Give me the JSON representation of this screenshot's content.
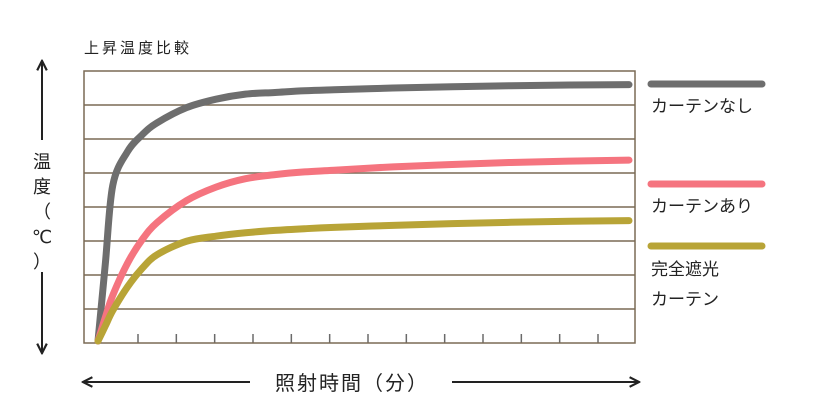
{
  "chart_data": {
    "type": "line",
    "title": "上昇温度比較",
    "ylabel": "温度（℃）",
    "ylabel_chars": [
      "温",
      "度",
      "（",
      "℃",
      "）"
    ],
    "xlabel": "照射時間（分）",
    "grid": true,
    "x": [
      0,
      0.25,
      0.5,
      1,
      1.5,
      2,
      3,
      4,
      5,
      6,
      7,
      8,
      10,
      12,
      14,
      16,
      18
    ],
    "ylim": [
      0,
      7.6
    ],
    "xlim": [
      0,
      18
    ],
    "x_tick_count": 13,
    "series": [
      {
        "name": "カーテンなし",
        "label_lines": [
          "カーテンなし"
        ],
        "color": "#6e6e6e",
        "values": [
          0,
          2.3,
          4.6,
          5.6,
          6.1,
          6.45,
          6.9,
          7.15,
          7.3,
          7.35,
          7.4,
          7.43,
          7.48,
          7.52,
          7.55,
          7.57,
          7.58
        ]
      },
      {
        "name": "カーテンあり",
        "label_lines": [
          "カーテンあり"
        ],
        "color": "#f5747f",
        "values": [
          0,
          0.7,
          1.35,
          2.3,
          3.0,
          3.5,
          4.15,
          4.55,
          4.8,
          4.92,
          5.0,
          5.05,
          5.15,
          5.22,
          5.28,
          5.32,
          5.35
        ]
      },
      {
        "name": "完全遮光カーテン",
        "label_lines": [
          "完全遮光",
          "カーテン"
        ],
        "color": "#b8a437",
        "values": [
          0,
          0.45,
          0.9,
          1.6,
          2.15,
          2.55,
          2.95,
          3.1,
          3.2,
          3.27,
          3.32,
          3.36,
          3.42,
          3.47,
          3.51,
          3.54,
          3.56
        ]
      }
    ]
  }
}
